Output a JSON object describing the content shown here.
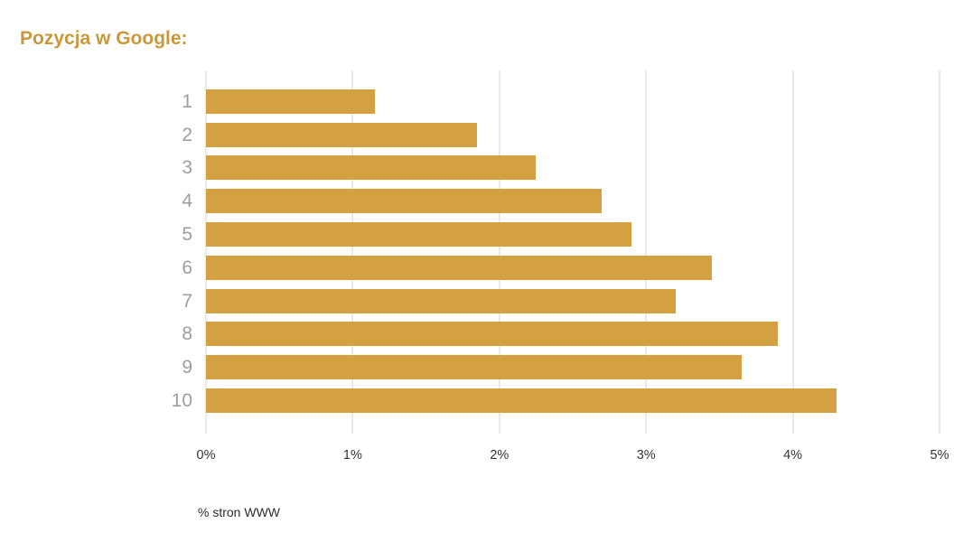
{
  "chart_data": {
    "type": "bar",
    "orientation": "horizontal",
    "title": "Pozycja w Google:",
    "xlabel": "% stron WWW",
    "ylabel": "",
    "categories": [
      "1",
      "2",
      "3",
      "4",
      "5",
      "6",
      "7",
      "8",
      "9",
      "10"
    ],
    "values": [
      1.15,
      1.85,
      2.25,
      2.7,
      2.9,
      3.45,
      3.2,
      3.9,
      3.65,
      4.3
    ],
    "xlim": [
      0,
      5
    ],
    "x_ticks": [
      "0%",
      "1%",
      "2%",
      "3%",
      "4%",
      "5%"
    ],
    "x_tick_values": [
      0,
      1,
      2,
      3,
      4,
      5
    ],
    "grid": true,
    "legend": false
  },
  "colors": {
    "bar": "#D3A042",
    "title": "#C9983A",
    "category_labels": "#9E9E9E",
    "tick_labels": "#333333",
    "axis_label": "#2B2B2B",
    "gridline": "#D3D3D3",
    "background": "#FFFFFF"
  }
}
